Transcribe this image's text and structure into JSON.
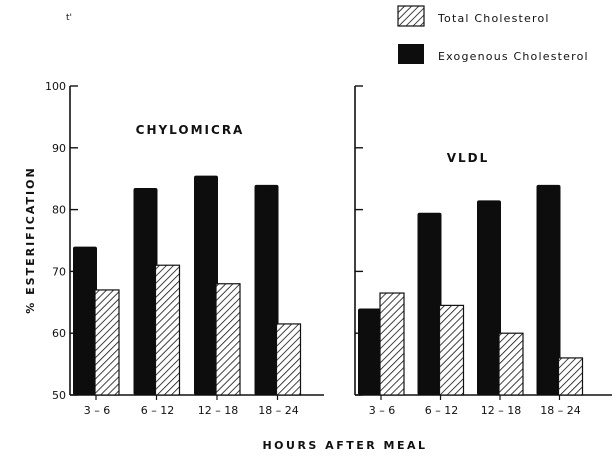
{
  "chart_data": [
    {
      "type": "bar",
      "panel_label": "CHYLOMICRA",
      "categories": [
        "3 – 6",
        "6 – 12",
        "12 – 18",
        "18 – 24"
      ],
      "series": [
        {
          "name": "Exogenous Cholesterol",
          "values": [
            74,
            83.5,
            85.5,
            84
          ]
        },
        {
          "name": "Total Cholesterol",
          "values": [
            67,
            71,
            68,
            61.5
          ]
        }
      ],
      "ylabel": "% ESTERIFICATION",
      "ylim": [
        50,
        100
      ],
      "yticks": [
        "50",
        "60",
        "70",
        "80",
        "90",
        "100"
      ],
      "grid": false
    },
    {
      "type": "bar",
      "panel_label": "VLDL",
      "categories": [
        "3 – 6",
        "6 – 12",
        "12 – 18",
        "18 – 24"
      ],
      "series": [
        {
          "name": "Exogenous Cholesterol",
          "values": [
            64,
            79.5,
            81.5,
            84
          ]
        },
        {
          "name": "Total Cholesterol",
          "values": [
            66.5,
            64.5,
            60,
            56
          ]
        }
      ],
      "ylim": [
        50,
        100
      ],
      "grid": false
    }
  ],
  "legend": {
    "placement": "top-right",
    "items": [
      {
        "label": "Total Cholesterol",
        "style": "hatched"
      },
      {
        "label": "Exogenous Cholesterol",
        "style": "solid"
      }
    ]
  },
  "stray_mark": "t'",
  "xlabel": "HOURS  AFTER  MEAL",
  "colors": {
    "solid": "#0d0d0d",
    "hatch": "#111111",
    "background": "#ffffff"
  }
}
